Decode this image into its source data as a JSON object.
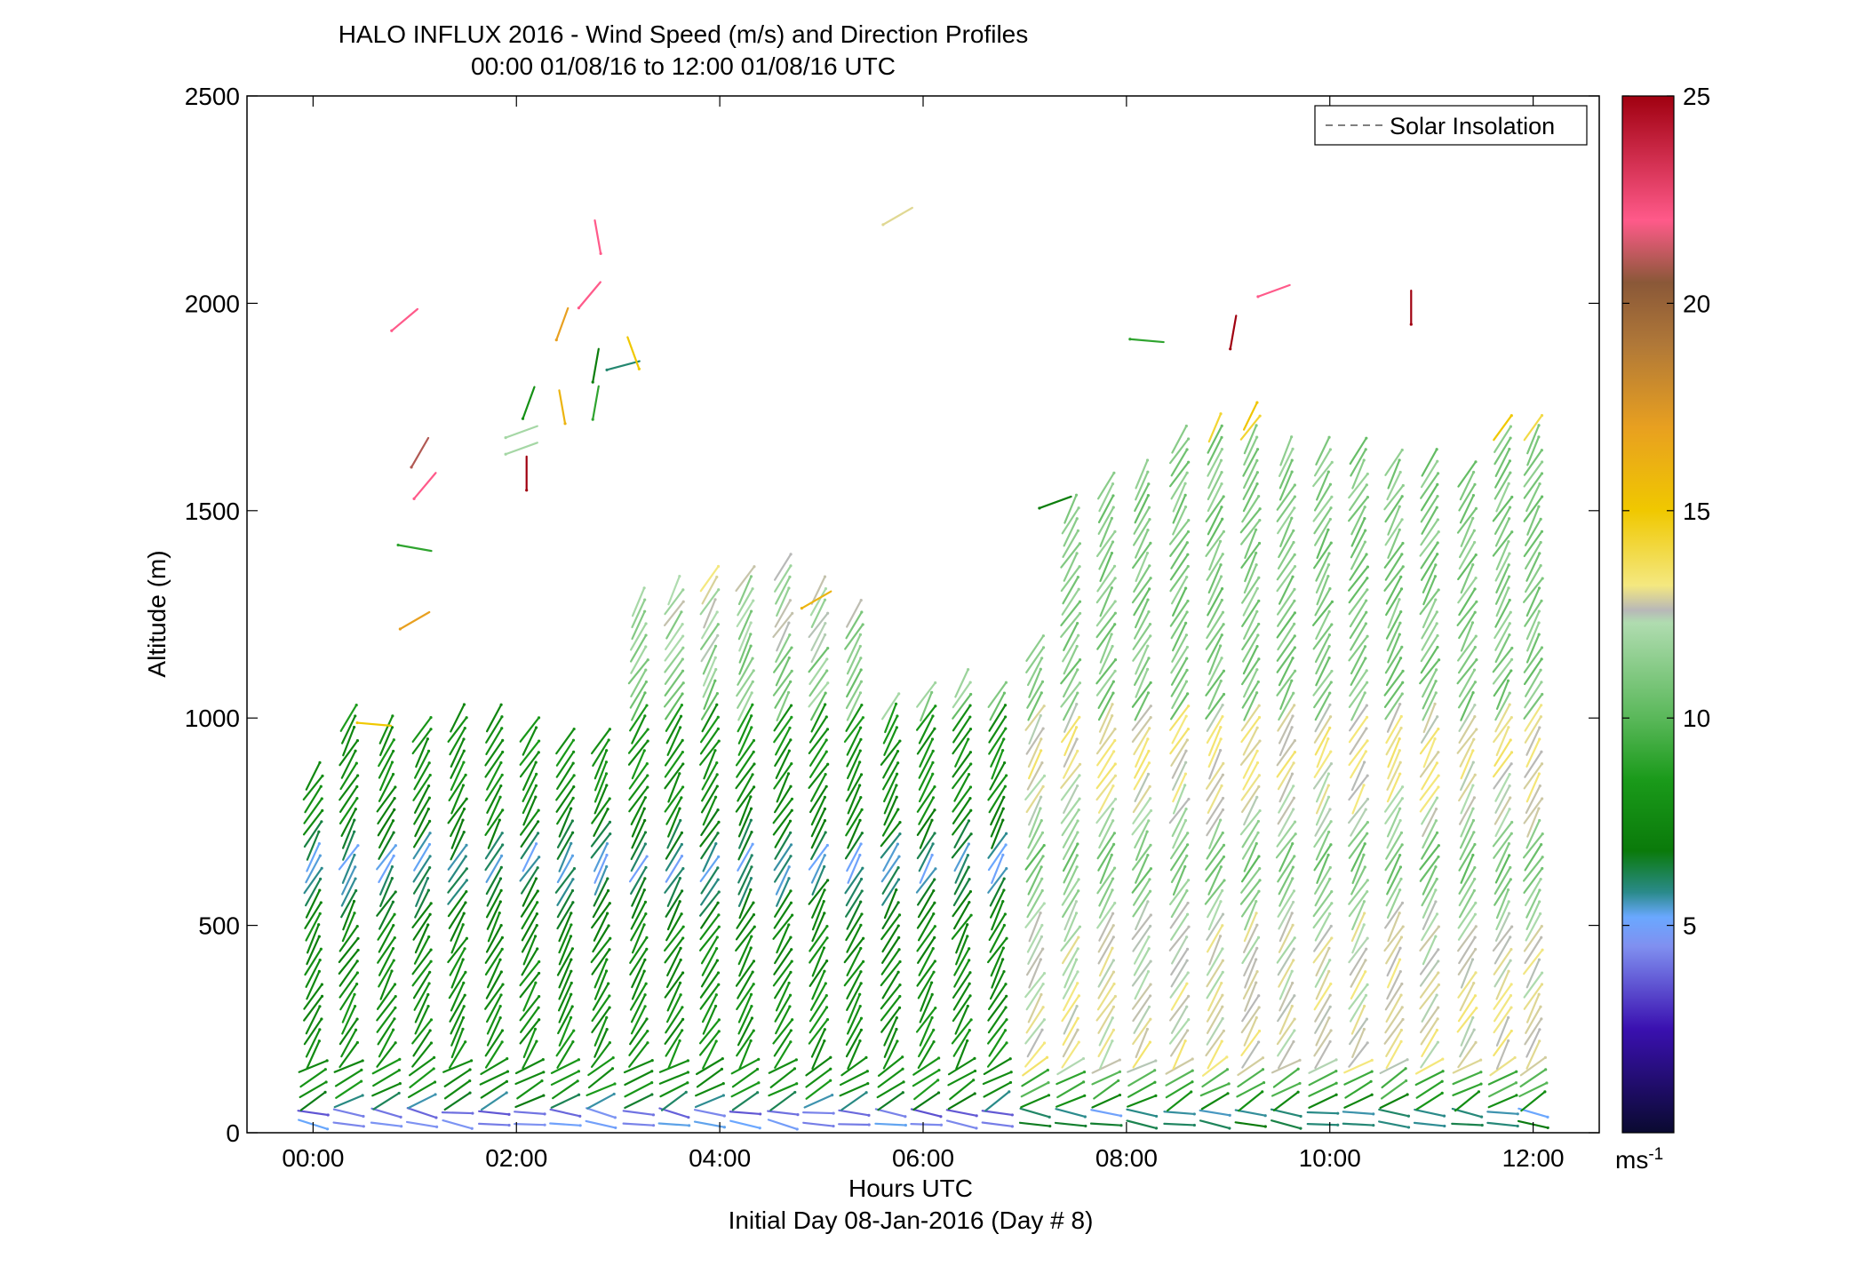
{
  "chart_data": {
    "type": "wind-profile",
    "title_line1": "HALO INFLUX 2016 - Wind Speed (m/s) and Direction Profiles",
    "title_line2": "00:00 01/08/16 to 12:00 01/08/16  UTC",
    "xlabel": "Hours UTC",
    "xsublabel": "Initial Day 08-Jan-2016 (Day # 8)",
    "ylabel": "Altitude (m)",
    "xlim_hours": [
      -0.65,
      12.65
    ],
    "ylim": [
      0,
      2500
    ],
    "x_ticks": [
      {
        "value": 0,
        "label": "00:00"
      },
      {
        "value": 2,
        "label": "02:00"
      },
      {
        "value": 4,
        "label": "04:00"
      },
      {
        "value": 6,
        "label": "06:00"
      },
      {
        "value": 8,
        "label": "08:00"
      },
      {
        "value": 10,
        "label": "10:00"
      },
      {
        "value": 12,
        "label": "12:00"
      }
    ],
    "y_ticks": [
      0,
      500,
      1000,
      1500,
      2000,
      2500
    ],
    "legend": {
      "label": "Solar Insolation",
      "placement": "top-right",
      "line_color": "#808080"
    },
    "colorbar": {
      "label": "ms-1",
      "range": [
        0,
        25
      ],
      "ticks": [
        5,
        10,
        15,
        20,
        25
      ],
      "stops": [
        {
          "v": 0,
          "c": "#0a0a30"
        },
        {
          "v": 2.5,
          "c": "#3a10b0"
        },
        {
          "v": 4.5,
          "c": "#8090f0"
        },
        {
          "v": 5.2,
          "c": "#6aa8ff"
        },
        {
          "v": 5.8,
          "c": "#2a8a8a"
        },
        {
          "v": 6.8,
          "c": "#0a7a0a"
        },
        {
          "v": 8.5,
          "c": "#1a9a1a"
        },
        {
          "v": 10,
          "c": "#5ab85a"
        },
        {
          "v": 12.3,
          "c": "#b0dcb0"
        },
        {
          "v": 12.6,
          "c": "#b8b8b8"
        },
        {
          "v": 13.2,
          "c": "#f4e880"
        },
        {
          "v": 15,
          "c": "#f0c800"
        },
        {
          "v": 17,
          "c": "#e8a020"
        },
        {
          "v": 19,
          "c": "#b07838"
        },
        {
          "v": 20.5,
          "c": "#8a5838"
        },
        {
          "v": 22,
          "c": "#ff5a8a"
        },
        {
          "v": 25,
          "c": "#a00010"
        }
      ]
    },
    "profile_times_hours": [
      0.0,
      0.35,
      0.72,
      1.07,
      1.42,
      1.78,
      2.13,
      2.48,
      2.83,
      3.2,
      3.55,
      3.9,
      4.25,
      4.62,
      4.97,
      5.32,
      5.68,
      6.03,
      6.38,
      6.73,
      7.1,
      7.45,
      7.8,
      8.15,
      8.52,
      8.87,
      9.22,
      9.57,
      9.93,
      10.28,
      10.63,
      10.98,
      11.35,
      11.7,
      12.0
    ],
    "profile_tops_m": [
      870,
      1000,
      990,
      980,
      1000,
      1020,
      990,
      950,
      970,
      1300,
      1320,
      1360,
      1350,
      1370,
      1310,
      1270,
      1050,
      1080,
      1090,
      1080,
      1180,
      1520,
      1560,
      1600,
      1680,
      1720,
      1750,
      1650,
      1650,
      1660,
      1620,
      1640,
      1610,
      1700,
      1710
    ],
    "speed_profile_m_s": [
      [
        0,
        6,
        9
      ],
      [
        40,
        3.5,
        10
      ],
      [
        100,
        8,
        10
      ],
      [
        500,
        7.5,
        20
      ],
      [
        650,
        5.3,
        0
      ],
      [
        760,
        7.5,
        20
      ],
      [
        900,
        8,
        0
      ]
    ],
    "upper_speed_profile_m_s": [
      [
        1000,
        11,
        20
      ],
      [
        1300,
        12,
        20
      ],
      [
        1700,
        15,
        20
      ],
      [
        2000,
        17,
        20
      ],
      [
        2400,
        19,
        20
      ]
    ],
    "isolated_barbs": [
      {
        "t": 0.9,
        "z": 1960,
        "speed": 22,
        "dir_deg": 230
      },
      {
        "t": 1.05,
        "z": 1640,
        "speed": 21,
        "dir_deg": 210
      },
      {
        "t": 1.1,
        "z": 1560,
        "speed": 22,
        "dir_deg": 220
      },
      {
        "t": 1.0,
        "z": 1410,
        "speed": 9,
        "dir_deg": 280
      },
      {
        "t": 1.0,
        "z": 1235,
        "speed": 17,
        "dir_deg": 240
      },
      {
        "t": 2.05,
        "z": 1690,
        "speed": 12,
        "dir_deg": 250
      },
      {
        "t": 2.05,
        "z": 1650,
        "speed": 12,
        "dir_deg": 250
      },
      {
        "t": 2.1,
        "z": 1590,
        "speed": 25,
        "dir_deg": 180
      },
      {
        "t": 2.12,
        "z": 1760,
        "speed": 8,
        "dir_deg": 200
      },
      {
        "t": 2.45,
        "z": 1950,
        "speed": 17,
        "dir_deg": 200
      },
      {
        "t": 2.45,
        "z": 1750,
        "speed": 16,
        "dir_deg": 170
      },
      {
        "t": 2.72,
        "z": 2020,
        "speed": 22,
        "dir_deg": 220
      },
      {
        "t": 2.8,
        "z": 2160,
        "speed": 22,
        "dir_deg": 170
      },
      {
        "t": 2.78,
        "z": 1850,
        "speed": 7,
        "dir_deg": 190
      },
      {
        "t": 2.78,
        "z": 1760,
        "speed": 9,
        "dir_deg": 190
      },
      {
        "t": 3.05,
        "z": 1850,
        "speed": 6,
        "dir_deg": 255
      },
      {
        "t": 3.15,
        "z": 1880,
        "speed": 15,
        "dir_deg": 160
      },
      {
        "t": 0.6,
        "z": 985,
        "speed": 15,
        "dir_deg": 275
      },
      {
        "t": 4.95,
        "z": 1285,
        "speed": 16,
        "dir_deg": 240
      },
      {
        "t": 5.75,
        "z": 2210,
        "speed": 13,
        "dir_deg": 240
      },
      {
        "t": 7.3,
        "z": 1520,
        "speed": 7,
        "dir_deg": 250
      },
      {
        "t": 9.45,
        "z": 2030,
        "speed": 22,
        "dir_deg": 250
      },
      {
        "t": 8.2,
        "z": 1910,
        "speed": 9,
        "dir_deg": 275
      },
      {
        "t": 9.05,
        "z": 1930,
        "speed": 25,
        "dir_deg": 190
      },
      {
        "t": 10.8,
        "z": 1990,
        "speed": 25,
        "dir_deg": 180
      }
    ]
  }
}
